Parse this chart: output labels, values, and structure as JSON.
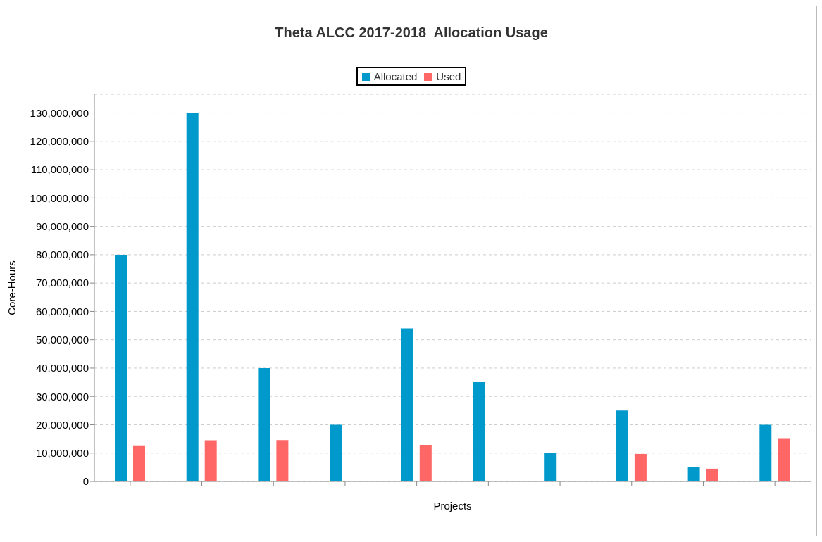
{
  "chart_data": {
    "type": "bar",
    "title": "Theta ALCC 2017-2018  Allocation Usage",
    "xlabel": "Projects",
    "ylabel": "Core-Hours",
    "categories": [
      null,
      null,
      null,
      null,
      null,
      null,
      null,
      null,
      null,
      null
    ],
    "series": [
      {
        "name": "Allocated",
        "color": "#0099cc",
        "values": [
          80000000,
          130000000,
          40000000,
          20000000,
          54000000,
          35000000,
          10000000,
          25000000,
          5000000,
          20000000
        ]
      },
      {
        "name": "Used",
        "color": "#ff6666",
        "values": [
          12700000,
          14500000,
          14600000,
          null,
          12900000,
          null,
          0,
          9700000,
          4500000,
          15300000
        ]
      }
    ],
    "ylim": [
      0,
      136600000
    ],
    "yticks": [
      0,
      {
        "value": 10000000,
        "label": "10,000,000"
      },
      {
        "value": 20000000,
        "label": "20,000,000"
      },
      {
        "value": 30000000,
        "label": "30,000,000"
      },
      {
        "value": 40000000,
        "label": "40,000,000"
      },
      {
        "value": 50000000,
        "label": "50,000,000"
      },
      {
        "value": 60000000,
        "label": "60,000,000"
      },
      {
        "value": 70000000,
        "label": "70,000,000"
      },
      {
        "value": 80000000,
        "label": "80,000,000"
      },
      {
        "value": 90000000,
        "label": "90,000,000"
      },
      {
        "value": 100000000,
        "label": "100,000,000"
      },
      {
        "value": 110000000,
        "label": "110,000,000"
      },
      {
        "value": 120000000,
        "label": "120,000,000"
      },
      {
        "value": 130000000,
        "label": "130,000,000"
      }
    ],
    "grid": "y",
    "legend": "top"
  }
}
